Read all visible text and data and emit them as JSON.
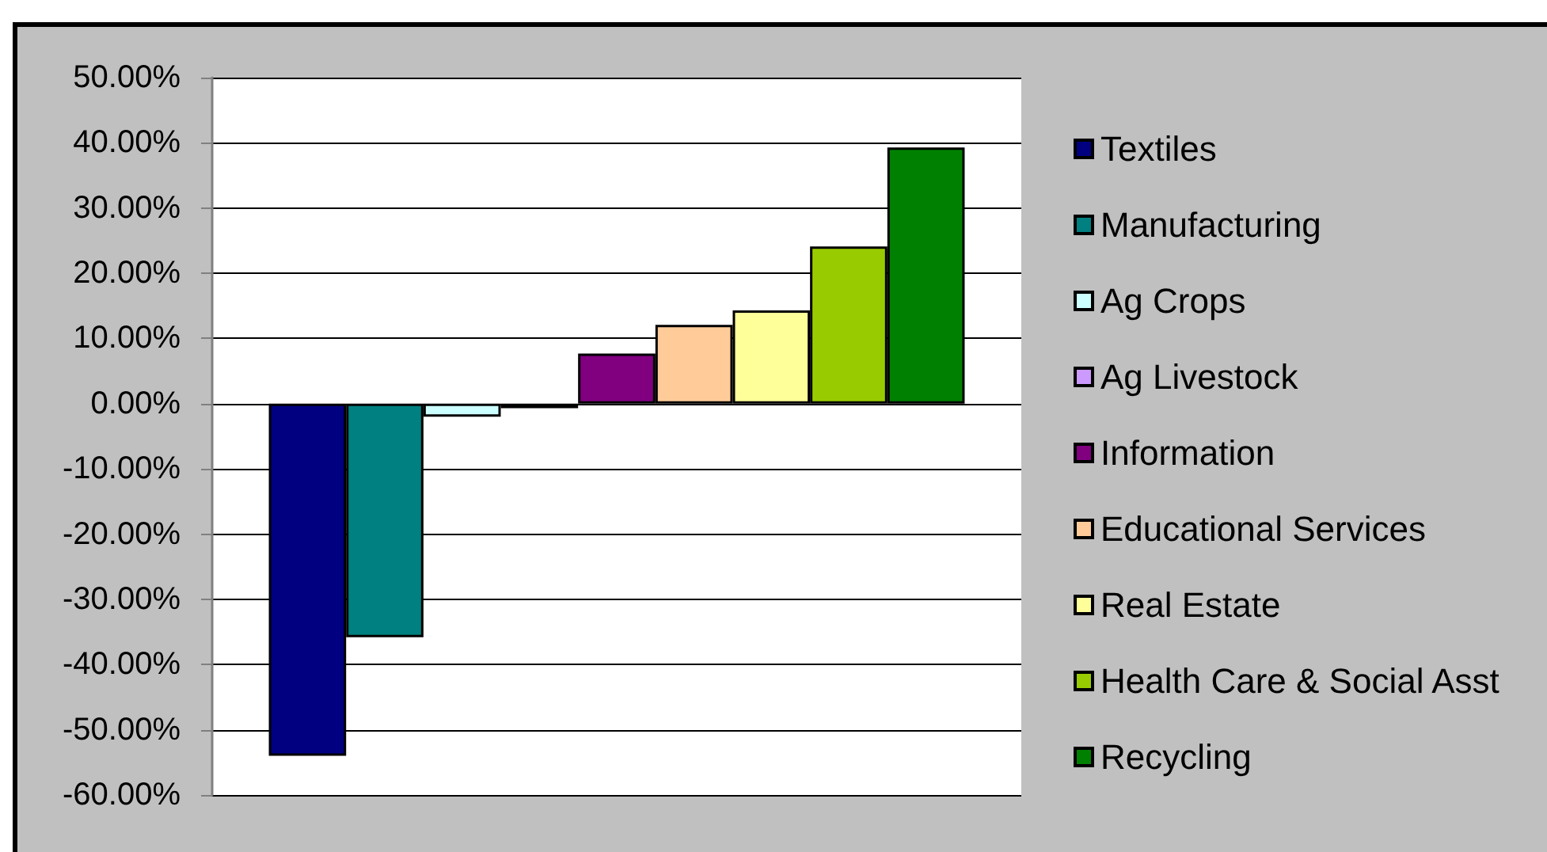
{
  "chart_data": {
    "type": "bar",
    "categories": [
      null
    ],
    "series": [
      {
        "name": "Textiles",
        "color": "#000080",
        "values": [
          -54.0
        ]
      },
      {
        "name": "Manufacturing",
        "color": "#008080",
        "values": [
          -35.8
        ]
      },
      {
        "name": "Ag Crops",
        "color": "#ccffff",
        "values": [
          -2.0
        ]
      },
      {
        "name": "Ag Livestock",
        "color": "#cc99ff",
        "values": [
          -0.7
        ]
      },
      {
        "name": "Information",
        "color": "#800080",
        "values": [
          7.7
        ]
      },
      {
        "name": "Educational Services",
        "color": "#ffcc99",
        "values": [
          12.1
        ]
      },
      {
        "name": "Real Estate",
        "color": "#ffff99",
        "values": [
          14.3
        ]
      },
      {
        "name": "Health Care & Social Asst",
        "color": "#99cc00",
        "values": [
          24.1
        ]
      },
      {
        "name": "Recycling",
        "color": "#008000",
        "values": [
          39.3
        ]
      }
    ],
    "ylim": [
      -60,
      50
    ],
    "yticks": [
      {
        "value": -60,
        "label": "-60.00%"
      },
      {
        "value": -50,
        "label": "-50.00%"
      },
      {
        "value": -40,
        "label": "-40.00%"
      },
      {
        "value": -30,
        "label": "-30.00%"
      },
      {
        "value": -20,
        "label": "-20.00%"
      },
      {
        "value": -10,
        "label": "-10.00%"
      },
      {
        "value": 0,
        "label": "0.00%"
      },
      {
        "value": 10,
        "label": "10.00%"
      },
      {
        "value": 20,
        "label": "20.00%"
      },
      {
        "value": 30,
        "label": "30.00%"
      },
      {
        "value": 40,
        "label": "40.00%"
      },
      {
        "value": 50,
        "label": "50.00%"
      }
    ],
    "grid": "y",
    "legend": "right"
  }
}
